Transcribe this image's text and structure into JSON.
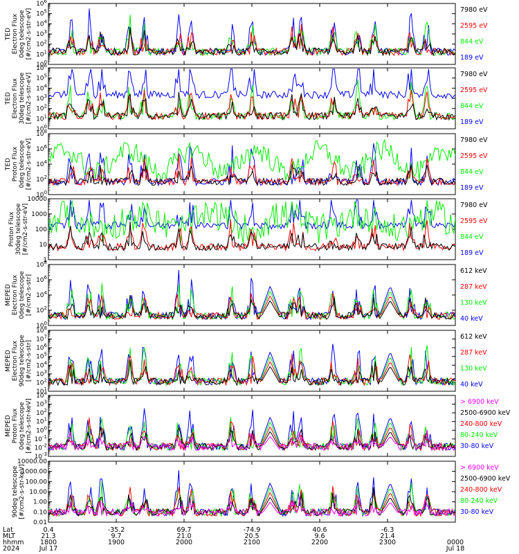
{
  "colors": {
    "blue": "#0000ff",
    "red": "#ff0000",
    "green": "#00ee00",
    "black": "#000000",
    "magenta": "#ff00ff"
  },
  "chart_data": [
    {
      "type": "line",
      "panel": 1,
      "ylabel": [
        "TED",
        "Electron Flux",
        "0deg telescope",
        "[#/cm2-s-str-eV]"
      ],
      "yscale": "log",
      "ylim": [
        1,
        1000000.0
      ],
      "yticks": [
        "10^0",
        "10^1",
        "10^2",
        "10^3",
        "10^4",
        "10^5",
        "10^6"
      ],
      "series": [
        {
          "name": "7980 eV",
          "color": "#000000"
        },
        {
          "name": "2595 eV",
          "color": "#ff0000"
        },
        {
          "name": "844 eV",
          "color": "#00ee00"
        },
        {
          "name": "189 eV",
          "color": "#0000ff"
        }
      ]
    },
    {
      "type": "line",
      "panel": 2,
      "ylabel": [
        "TED",
        "Electron Flux",
        "30deg telescope",
        "[#/cm2-s-str-eV]"
      ],
      "yscale": "log",
      "ylim": [
        1,
        1000000.0
      ],
      "yticks": [
        "10^0",
        "10^1",
        "10^2",
        "10^3",
        "10^4",
        "10^5",
        "10^6"
      ],
      "series": [
        {
          "name": "7980 eV",
          "color": "#000000"
        },
        {
          "name": "2595 eV",
          "color": "#ff0000"
        },
        {
          "name": "844 eV",
          "color": "#00ee00"
        },
        {
          "name": "189 eV",
          "color": "#0000ff"
        }
      ]
    },
    {
      "type": "line",
      "panel": 3,
      "ylabel": [
        "TED",
        "Proton Flux",
        "0deg telescope",
        "[#/cm2-s-str-eV]"
      ],
      "yscale": "log",
      "ylim": [
        1,
        100000000.0
      ],
      "yticks": [
        "10^0",
        "10^2",
        "10^4",
        "10^6",
        "10^8"
      ],
      "series": [
        {
          "name": "7980 eV",
          "color": "#000000"
        },
        {
          "name": "2595 eV",
          "color": "#ff0000"
        },
        {
          "name": "844 eV",
          "color": "#00ee00"
        },
        {
          "name": "189 eV",
          "color": "#0000ff"
        }
      ]
    },
    {
      "type": "line",
      "panel": 4,
      "ylabel": [
        "Proton Flux",
        "30deg telescope",
        "[#/cm2-s-str-eV]"
      ],
      "yscale": "log",
      "ylim": [
        1,
        10000
      ],
      "yticks": [
        "1",
        "10",
        "100",
        "1000",
        "10000"
      ],
      "series": [
        {
          "name": "7980 eV",
          "color": "#000000"
        },
        {
          "name": "2595 eV",
          "color": "#ff0000"
        },
        {
          "name": "844 eV",
          "color": "#00ee00"
        },
        {
          "name": "189 eV",
          "color": "#0000ff"
        }
      ]
    },
    {
      "type": "line",
      "panel": 5,
      "ylabel": [
        "MEPED",
        "Electron Flux",
        "0deg telescope",
        "[#/cm2-s-str]"
      ],
      "yscale": "log",
      "ylim": [
        1,
        100000000.0
      ],
      "yticks": [
        "10^0",
        "10^2",
        "10^4",
        "10^6",
        "10^8"
      ],
      "series": [
        {
          "name": "612 keV",
          "color": "#000000"
        },
        {
          "name": "287 keV",
          "color": "#ff0000"
        },
        {
          "name": "130 keV",
          "color": "#00ee00"
        },
        {
          "name": "40 keV",
          "color": "#0000ff"
        }
      ]
    },
    {
      "type": "line",
      "panel": 6,
      "ylabel": [
        "MEPED",
        "Electron Flux",
        "90deg telescope",
        "[#/cm2-s-str]"
      ],
      "yscale": "log",
      "ylim": [
        10,
        100000000.0
      ],
      "yticks": [
        "10^1",
        "10^2",
        "10^3",
        "10^4",
        "10^5",
        "10^6",
        "10^7",
        "10^8"
      ],
      "series": [
        {
          "name": "612 keV",
          "color": "#000000"
        },
        {
          "name": "287 keV",
          "color": "#ff0000"
        },
        {
          "name": "130 keV",
          "color": "#00ee00"
        },
        {
          "name": "40 keV",
          "color": "#0000ff"
        }
      ]
    },
    {
      "type": "line",
      "panel": 7,
      "ylabel": [
        "MEPED",
        "Proton Flux",
        "0deg telescope",
        "[#/cm2-s-str-keV]"
      ],
      "yscale": "log",
      "ylim": [
        0.001,
        10000.0
      ],
      "yticks": [
        "10^-3",
        "10^-2",
        "10^-1",
        "10^0",
        "10^1",
        "10^2",
        "10^3",
        "10^4"
      ],
      "series": [
        {
          "name": "> 6900 keV",
          "color": "#ff00ff"
        },
        {
          "name": "2500-6900 keV",
          "color": "#000000"
        },
        {
          "name": "240-800 keV",
          "color": "#ff0000"
        },
        {
          "name": "80-240 keV",
          "color": "#00ee00"
        },
        {
          "name": "30-80 keV",
          "color": "#0000ff"
        }
      ]
    },
    {
      "type": "line",
      "panel": 8,
      "ylabel": [
        "90deg telescope",
        "[#/cm2-s-str-keV]"
      ],
      "yscale": "log",
      "ylim": [
        0.01,
        10000
      ],
      "yticks": [
        "0.01",
        "0.10",
        "1.00",
        "10.00",
        "100.00",
        "1000.00",
        "10000.00"
      ],
      "series": [
        {
          "name": "> 6900 keV",
          "color": "#ff00ff"
        },
        {
          "name": "2500-6900 keV",
          "color": "#000000"
        },
        {
          "name": "240-800 keV",
          "color": "#ff0000"
        },
        {
          "name": "80-240 keV",
          "color": "#00ee00"
        },
        {
          "name": "30-80 keV",
          "color": "#0000ff"
        }
      ]
    }
  ],
  "xaxis": {
    "row_labels": [
      "Lat",
      "MLT",
      "hhmm",
      "2024"
    ],
    "ticks": [
      {
        "lat": "0.4",
        "mlt": "21.3",
        "hhmm": "1800",
        "date": "Jul 17"
      },
      {
        "lat": "-35.2",
        "mlt": "9.7",
        "hhmm": "1900",
        "date": ""
      },
      {
        "lat": "69.7",
        "mlt": "21.0",
        "hhmm": "2000",
        "date": ""
      },
      {
        "lat": "-74.9",
        "mlt": "20.5",
        "hhmm": "2100",
        "date": ""
      },
      {
        "lat": "40.6",
        "mlt": "9.6",
        "hhmm": "2200",
        "date": ""
      },
      {
        "lat": "-6.3",
        "mlt": "21.4",
        "hhmm": "2300",
        "date": ""
      },
      {
        "lat": "",
        "mlt": "",
        "hhmm": "0000",
        "date": "Jul 18"
      }
    ]
  }
}
